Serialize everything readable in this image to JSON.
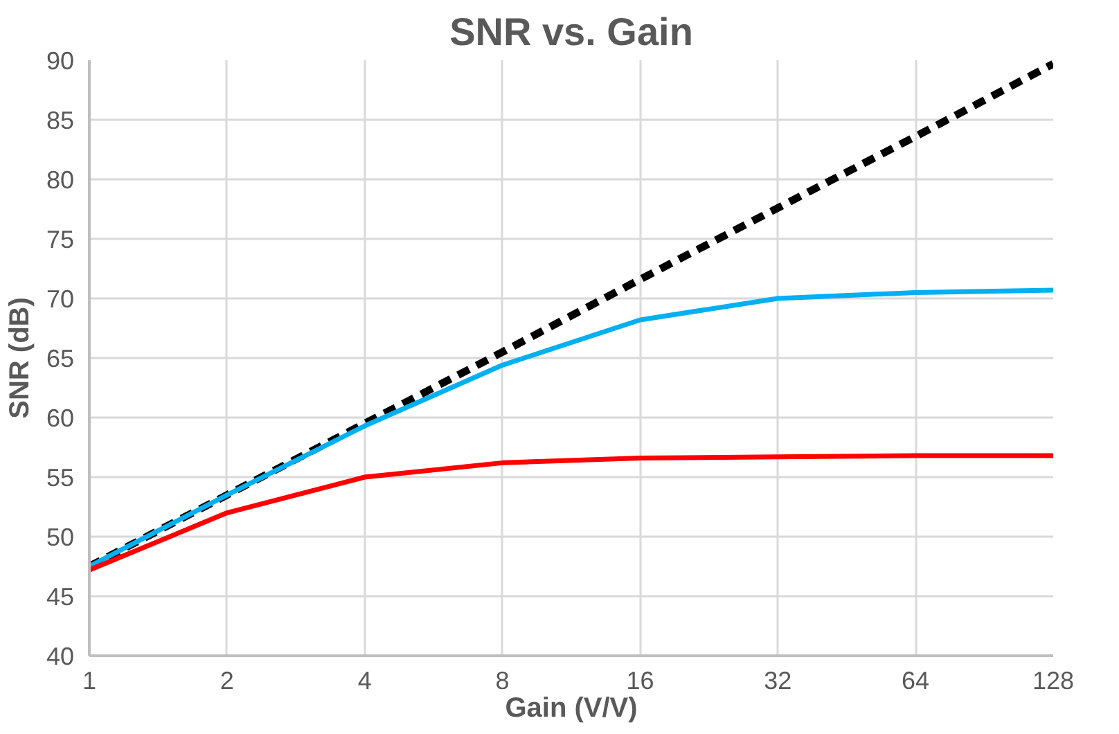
{
  "chart_data": {
    "type": "line",
    "title": "SNR vs. Gain",
    "xlabel": "Gain (V/V)",
    "ylabel": "SNR (dB)",
    "categories": [
      "1",
      "2",
      "4",
      "8",
      "16",
      "32",
      "64",
      "128"
    ],
    "series": [
      {
        "color": "#000000",
        "line_style": "dashed",
        "values": [
          47.5,
          53.5,
          59.5,
          65.5,
          71.6,
          77.6,
          83.6,
          89.7
        ]
      },
      {
        "color": "#00b0f0",
        "line_style": "solid",
        "values": [
          47.5,
          53.5,
          59.3,
          64.4,
          68.2,
          70.0,
          70.5,
          70.7
        ]
      },
      {
        "color": "#ff0000",
        "line_style": "solid",
        "values": [
          47.2,
          52.0,
          55.0,
          56.2,
          56.6,
          56.7,
          56.8,
          56.8
        ]
      }
    ],
    "ylim": [
      40,
      90
    ],
    "yticks": [
      40,
      45,
      50,
      55,
      60,
      65,
      70,
      75,
      80,
      85,
      90
    ],
    "grid": true,
    "marker": "none"
  }
}
